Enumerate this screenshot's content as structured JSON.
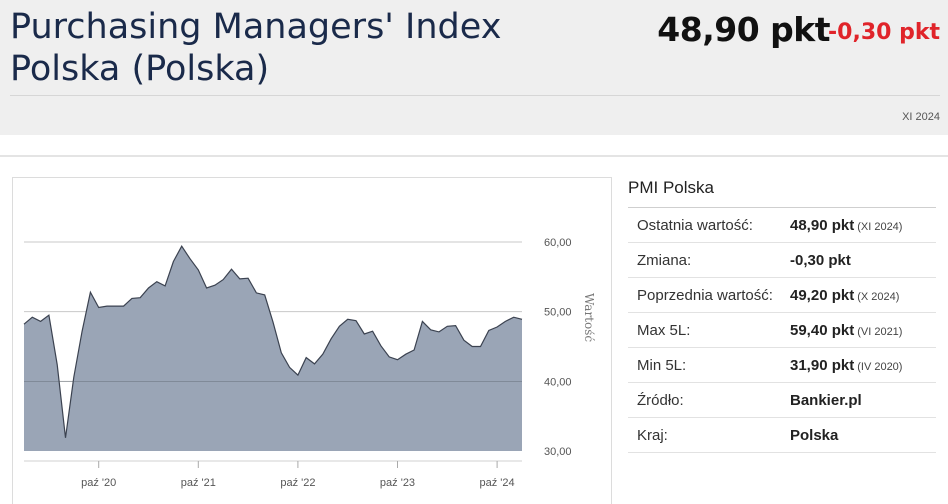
{
  "header": {
    "title": "Purchasing Managers' Index Polska (Polska)",
    "price": "48,90 pkt",
    "change": "-0,30 pkt",
    "period": "XI 2024"
  },
  "side": {
    "title": "PMI Polska",
    "rows": [
      {
        "label": "Ostatnia wartość:",
        "value": "48,90 pkt",
        "sub": "(XI 2024)"
      },
      {
        "label": "Zmiana:",
        "value": "-0,30 pkt",
        "sub": ""
      },
      {
        "label": "Poprzednia wartość:",
        "value": "49,20 pkt",
        "sub": "(X 2024)"
      },
      {
        "label": "Max 5L:",
        "value": "59,40 pkt",
        "sub": "(VI 2021)"
      },
      {
        "label": "Min 5L:",
        "value": "31,90 pkt",
        "sub": "(IV 2020)"
      },
      {
        "label": "Źródło:",
        "value": "Bankier.pl",
        "sub": ""
      },
      {
        "label": "Kraj:",
        "value": "Polska",
        "sub": ""
      }
    ]
  },
  "colors": {
    "area_fill": "#9aa5b6",
    "area_line": "#3b4250",
    "change": "#e0242a"
  },
  "chart_data": {
    "type": "area",
    "ylabel": "Wartość",
    "ylim": [
      28,
      62
    ],
    "yticks": [
      30,
      40,
      50,
      60
    ],
    "ytick_labels": [
      "30,00",
      "40,00",
      "50,00",
      "60,00"
    ],
    "xticks": [
      9,
      21,
      33,
      45,
      57
    ],
    "xtick_labels": [
      "paź '20",
      "paź '21",
      "paź '22",
      "paź '23",
      "paź '24"
    ],
    "x_start": "2019-12",
    "values": [
      48.2,
      49.2,
      48.6,
      49.5,
      42.4,
      31.9,
      40.6,
      47.2,
      52.8,
      50.6,
      50.8,
      50.8,
      50.8,
      51.9,
      52.0,
      53.4,
      54.3,
      53.7,
      57.2,
      59.4,
      57.6,
      56.0,
      53.4,
      53.8,
      54.6,
      56.1,
      54.7,
      54.8,
      52.7,
      52.4,
      48.5,
      44.1,
      42.0,
      40.9,
      43.4,
      42.5,
      43.9,
      46.1,
      47.9,
      48.9,
      48.7,
      46.8,
      47.2,
      45.1,
      43.5,
      43.1,
      43.9,
      44.5,
      48.6,
      47.4,
      47.1,
      47.9,
      48.0,
      45.9,
      45.0,
      45.0,
      47.3,
      47.8,
      48.6,
      49.2,
      48.9
    ]
  }
}
